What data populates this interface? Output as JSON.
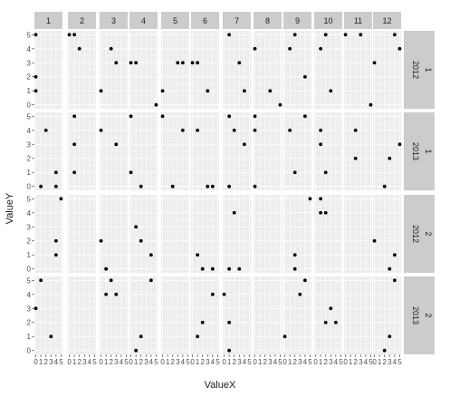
{
  "chart_data": {
    "type": "scatter",
    "xlabel": "ValueX",
    "ylabel": "ValueY",
    "columns": [
      "1",
      "2",
      "3",
      "4",
      "5",
      "6",
      "7",
      "8",
      "9",
      "10",
      "11",
      "12"
    ],
    "rows": [
      {
        "year": "2012",
        "group": "1"
      },
      {
        "year": "2013",
        "group": "1"
      },
      {
        "year": "2012",
        "group": "2"
      },
      {
        "year": "2013",
        "group": "2"
      }
    ],
    "xlim": [
      0,
      5
    ],
    "ylim": [
      0,
      5
    ],
    "x_ticks": [
      0,
      1,
      2,
      3,
      4,
      5
    ],
    "y_ticks": [
      0,
      1,
      2,
      3,
      4,
      5
    ],
    "x_tick_labels": [
      "0",
      "1",
      "2",
      "3",
      "4",
      "5"
    ],
    "y_tick_labels": [
      "0",
      "1",
      "2",
      "3",
      "4",
      "5"
    ],
    "grid": true,
    "colors": {
      "panel_bg": "#ebebeb",
      "grid_major": "#ffffff",
      "grid_minor": "#f5f5f5",
      "strip_bg": "#cccccc",
      "point": "#000000",
      "tick": "#4d4d4d"
    },
    "panels": [
      {
        "row": 0,
        "col": 0,
        "points": [
          [
            0,
            5
          ],
          [
            0,
            2
          ],
          [
            0,
            1
          ]
        ]
      },
      {
        "row": 0,
        "col": 1,
        "points": [
          [
            0,
            5
          ],
          [
            1,
            5
          ],
          [
            2,
            4
          ]
        ]
      },
      {
        "row": 0,
        "col": 2,
        "points": [
          [
            0,
            1
          ],
          [
            2,
            4
          ],
          [
            3,
            3
          ]
        ]
      },
      {
        "row": 0,
        "col": 3,
        "points": [
          [
            0,
            3
          ],
          [
            1,
            3
          ],
          [
            5,
            0
          ]
        ]
      },
      {
        "row": 0,
        "col": 4,
        "points": [
          [
            0,
            1
          ],
          [
            3,
            3
          ],
          [
            4,
            3
          ]
        ]
      },
      {
        "row": 0,
        "col": 5,
        "points": [
          [
            0,
            3
          ],
          [
            1,
            3
          ],
          [
            3,
            1
          ]
        ]
      },
      {
        "row": 0,
        "col": 6,
        "points": [
          [
            1,
            5
          ],
          [
            3,
            3
          ],
          [
            4,
            1
          ]
        ]
      },
      {
        "row": 0,
        "col": 7,
        "points": [
          [
            0,
            4
          ],
          [
            3,
            1
          ],
          [
            5,
            0
          ]
        ]
      },
      {
        "row": 0,
        "col": 8,
        "points": [
          [
            1,
            4
          ],
          [
            2,
            5
          ],
          [
            4,
            2
          ]
        ]
      },
      {
        "row": 0,
        "col": 9,
        "points": [
          [
            1,
            4
          ],
          [
            2,
            5
          ],
          [
            3,
            1
          ]
        ]
      },
      {
        "row": 0,
        "col": 10,
        "points": [
          [
            0,
            5
          ],
          [
            3,
            5
          ],
          [
            5,
            0
          ]
        ]
      },
      {
        "row": 0,
        "col": 11,
        "points": [
          [
            0,
            3
          ],
          [
            4,
            5
          ],
          [
            5,
            4
          ]
        ]
      },
      {
        "row": 1,
        "col": 0,
        "points": [
          [
            1,
            0
          ],
          [
            2,
            4
          ],
          [
            4,
            0
          ],
          [
            4,
            1
          ]
        ]
      },
      {
        "row": 1,
        "col": 1,
        "points": [
          [
            1,
            5
          ],
          [
            1,
            3
          ],
          [
            1,
            1
          ]
        ]
      },
      {
        "row": 1,
        "col": 2,
        "points": [
          [
            0,
            4
          ],
          [
            3,
            3
          ]
        ]
      },
      {
        "row": 1,
        "col": 3,
        "points": [
          [
            0,
            5
          ],
          [
            0,
            1
          ],
          [
            2,
            0
          ]
        ]
      },
      {
        "row": 1,
        "col": 4,
        "points": [
          [
            0,
            5
          ],
          [
            2,
            0
          ],
          [
            4,
            4
          ]
        ]
      },
      {
        "row": 1,
        "col": 5,
        "points": [
          [
            1,
            4
          ],
          [
            3,
            0
          ],
          [
            4,
            0
          ]
        ]
      },
      {
        "row": 1,
        "col": 6,
        "points": [
          [
            1,
            5
          ],
          [
            2,
            4
          ],
          [
            4,
            3
          ],
          [
            1,
            0
          ]
        ]
      },
      {
        "row": 1,
        "col": 7,
        "points": [
          [
            0,
            5
          ],
          [
            0,
            4
          ],
          [
            0,
            0
          ]
        ]
      },
      {
        "row": 1,
        "col": 8,
        "points": [
          [
            1,
            4
          ],
          [
            2,
            1
          ],
          [
            4,
            5
          ]
        ]
      },
      {
        "row": 1,
        "col": 9,
        "points": [
          [
            1,
            3
          ],
          [
            2,
            1
          ],
          [
            1,
            4
          ]
        ]
      },
      {
        "row": 1,
        "col": 10,
        "points": [
          [
            2,
            4
          ],
          [
            2,
            2
          ]
        ]
      },
      {
        "row": 1,
        "col": 11,
        "points": [
          [
            2,
            0
          ],
          [
            3,
            2
          ],
          [
            5,
            3
          ]
        ]
      },
      {
        "row": 2,
        "col": 0,
        "points": [
          [
            4,
            2
          ],
          [
            4,
            1
          ],
          [
            5,
            5
          ]
        ]
      },
      {
        "row": 2,
        "col": 1,
        "points": []
      },
      {
        "row": 2,
        "col": 2,
        "points": [
          [
            0,
            2
          ],
          [
            1,
            0
          ]
        ]
      },
      {
        "row": 2,
        "col": 3,
        "points": [
          [
            1,
            3
          ],
          [
            2,
            2
          ],
          [
            4,
            1
          ]
        ]
      },
      {
        "row": 2,
        "col": 4,
        "points": []
      },
      {
        "row": 2,
        "col": 5,
        "points": [
          [
            1,
            1
          ],
          [
            2,
            0
          ],
          [
            4,
            0
          ]
        ]
      },
      {
        "row": 2,
        "col": 6,
        "points": [
          [
            1,
            0
          ],
          [
            2,
            4
          ],
          [
            3,
            0
          ]
        ]
      },
      {
        "row": 2,
        "col": 7,
        "points": []
      },
      {
        "row": 2,
        "col": 8,
        "points": [
          [
            2,
            1
          ],
          [
            2,
            0
          ],
          [
            5,
            5
          ]
        ]
      },
      {
        "row": 2,
        "col": 9,
        "points": [
          [
            1,
            5
          ],
          [
            1,
            4
          ],
          [
            2,
            4
          ]
        ]
      },
      {
        "row": 2,
        "col": 10,
        "points": []
      },
      {
        "row": 2,
        "col": 11,
        "points": [
          [
            0,
            2
          ],
          [
            3,
            0
          ],
          [
            4,
            1
          ]
        ]
      },
      {
        "row": 3,
        "col": 0,
        "points": [
          [
            0,
            3
          ],
          [
            1,
            5
          ],
          [
            3,
            1
          ]
        ]
      },
      {
        "row": 3,
        "col": 1,
        "points": []
      },
      {
        "row": 3,
        "col": 2,
        "points": [
          [
            1,
            4
          ],
          [
            2,
            5
          ],
          [
            3,
            4
          ]
        ]
      },
      {
        "row": 3,
        "col": 3,
        "points": [
          [
            1,
            0
          ],
          [
            2,
            1
          ],
          [
            4,
            5
          ]
        ]
      },
      {
        "row": 3,
        "col": 4,
        "points": []
      },
      {
        "row": 3,
        "col": 5,
        "points": [
          [
            1,
            1
          ],
          [
            2,
            2
          ],
          [
            4,
            4
          ]
        ]
      },
      {
        "row": 3,
        "col": 6,
        "points": [
          [
            0,
            4
          ],
          [
            1,
            2
          ],
          [
            1,
            0
          ]
        ]
      },
      {
        "row": 3,
        "col": 7,
        "points": []
      },
      {
        "row": 3,
        "col": 8,
        "points": [
          [
            0,
            1
          ],
          [
            3,
            4
          ],
          [
            4,
            5
          ]
        ]
      },
      {
        "row": 3,
        "col": 9,
        "points": [
          [
            2,
            2
          ],
          [
            3,
            3
          ],
          [
            4,
            2
          ]
        ]
      },
      {
        "row": 3,
        "col": 10,
        "points": []
      },
      {
        "row": 3,
        "col": 11,
        "points": [
          [
            2,
            0
          ],
          [
            3,
            1
          ],
          [
            4,
            5
          ]
        ]
      }
    ]
  }
}
